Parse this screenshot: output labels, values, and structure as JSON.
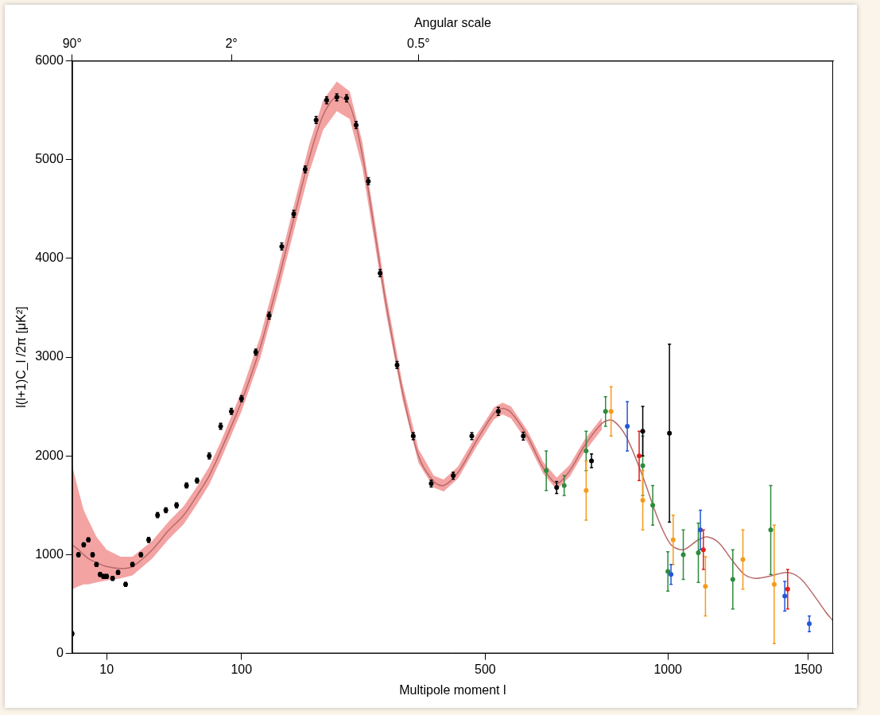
{
  "chart_data": {
    "type": "scatter",
    "x_label": "Multipole moment l",
    "x2_label": "Angular scale",
    "y_label": "l(l+1)C_l /2π [μK²]",
    "xlim": [
      2,
      1600
    ],
    "ylim": [
      0,
      6000
    ],
    "xticks": [
      10,
      100,
      500,
      1000,
      1500
    ],
    "x2ticks": [
      {
        "value": 2,
        "label": "90°"
      },
      {
        "value": 90,
        "label": "2°"
      },
      {
        "value": 360,
        "label": "0.5°"
      }
    ],
    "yticks": [
      0,
      1000,
      2000,
      3000,
      4000,
      5000,
      6000
    ],
    "grid": false,
    "series": [
      {
        "type": "band",
        "color": "#f4a3a3",
        "x": [
          2,
          3,
          4,
          5,
          7,
          10,
          15,
          20,
          30,
          40,
          50,
          60,
          70,
          80,
          100,
          120,
          140,
          160,
          180,
          200,
          220,
          240,
          260,
          280,
          300,
          330,
          360,
          390,
          410,
          440,
          480,
          520,
          540,
          560,
          600,
          640,
          675,
          710,
          750,
          800
        ],
        "lower": [
          650,
          680,
          700,
          700,
          720,
          740,
          760,
          790,
          960,
          1160,
          1310,
          1510,
          1710,
          1960,
          2450,
          2990,
          3630,
          4270,
          4860,
          5300,
          5490,
          5410,
          4920,
          4180,
          3450,
          2570,
          1930,
          1680,
          1640,
          1770,
          2090,
          2370,
          2420,
          2380,
          2140,
          1820,
          1660,
          1790,
          2040,
          2270
        ],
        "upper": [
          1900,
          1650,
          1450,
          1350,
          1180,
          1050,
          980,
          980,
          1140,
          1340,
          1490,
          1690,
          1890,
          2140,
          2650,
          3210,
          3870,
          4530,
          5140,
          5600,
          5790,
          5690,
          5180,
          4420,
          3650,
          2730,
          2070,
          1800,
          1760,
          1890,
          2210,
          2490,
          2540,
          2500,
          2260,
          1940,
          1780,
          1910,
          2160,
          2390
        ]
      },
      {
        "type": "line",
        "color": "#b86a6a",
        "line_style": "solid",
        "x": [
          2,
          3,
          4,
          5,
          7,
          10,
          15,
          20,
          30,
          40,
          50,
          60,
          70,
          80,
          100,
          120,
          140,
          160,
          180,
          200,
          220,
          240,
          260,
          280,
          300,
          330,
          360,
          390,
          410,
          440,
          480,
          520,
          540,
          560,
          600,
          640,
          675,
          710,
          750,
          800,
          830,
          870,
          920,
          970,
          1010,
          1050,
          1100,
          1130,
          1170,
          1220,
          1260,
          1300,
          1350,
          1420,
          1470,
          1520,
          1570,
          1600
        ],
        "values": [
          1100,
          1050,
          1000,
          960,
          920,
          880,
          860,
          880,
          1050,
          1250,
          1400,
          1600,
          1800,
          2050,
          2550,
          3100,
          3750,
          4400,
          5000,
          5450,
          5640,
          5550,
          5050,
          4300,
          3550,
          2650,
          2000,
          1740,
          1700,
          1830,
          2150,
          2430,
          2480,
          2440,
          2200,
          1880,
          1720,
          1850,
          2100,
          2330,
          2360,
          2200,
          1800,
          1350,
          1100,
          1050,
          1150,
          1180,
          1120,
          930,
          800,
          760,
          780,
          820,
          760,
          600,
          420,
          330
        ]
      },
      {
        "type": "scatter",
        "color": "#000000",
        "marker": "circle",
        "x": [
          2,
          3,
          4,
          5,
          6,
          7,
          8,
          9,
          10,
          12,
          14,
          17,
          20,
          24,
          28,
          33,
          38,
          45,
          52,
          60,
          70,
          80,
          90,
          100,
          115,
          130,
          145,
          160,
          175,
          190,
          205,
          220,
          235,
          250,
          270,
          290,
          320,
          350,
          385,
          430,
          470,
          530,
          590,
          675,
          770
        ],
        "values": [
          200,
          1000,
          1100,
          1150,
          1000,
          900,
          800,
          780,
          780,
          760,
          820,
          700,
          900,
          1000,
          1150,
          1400,
          1450,
          1500,
          1700,
          1750,
          2000,
          2300,
          2450,
          2580,
          3050,
          3420,
          4120,
          4450,
          4900,
          5400,
          5600,
          5630,
          5620,
          5350,
          4780,
          3850,
          2920,
          2200,
          1720,
          1800,
          2200,
          2450,
          2200,
          1680,
          1950
        ],
        "errors": [
          20,
          20,
          20,
          20,
          20,
          20,
          20,
          20,
          20,
          20,
          20,
          20,
          20,
          20,
          25,
          25,
          25,
          25,
          25,
          25,
          30,
          30,
          30,
          30,
          30,
          35,
          35,
          35,
          35,
          35,
          35,
          35,
          35,
          35,
          35,
          35,
          35,
          35,
          35,
          35,
          35,
          40,
          40,
          60,
          70
        ]
      },
      {
        "type": "scatter",
        "color": "#2e8b3c",
        "marker": "circle",
        "x": [
          648,
          695,
          755,
          810,
          921,
          952,
          1000,
          1050,
          1100,
          1219,
          1357
        ],
        "values": [
          1850,
          1700,
          2050,
          2450,
          1900,
          1500,
          830,
          1000,
          1020,
          750,
          1250
        ],
        "errors": [
          200,
          100,
          200,
          150,
          300,
          200,
          200,
          250,
          300,
          300,
          450
        ]
      },
      {
        "type": "scatter",
        "color": "#f59b1c",
        "marker": "circle",
        "x": [
          755,
          826,
          921,
          1017,
          1124,
          1255,
          1370
        ],
        "values": [
          1650,
          2450,
          1550,
          1150,
          680,
          950,
          700
        ],
        "errors": [
          300,
          250,
          300,
          250,
          300,
          300,
          600
        ]
      },
      {
        "type": "scatter",
        "color": "#2257d8",
        "marker": "circle",
        "x": [
          874,
          1010,
          1107,
          1410,
          1505
        ],
        "values": [
          2300,
          800,
          1250,
          580,
          300
        ],
        "errors": [
          250,
          100,
          200,
          150,
          80
        ]
      },
      {
        "type": "scatter",
        "color": "#e0201b",
        "marker": "circle",
        "x": [
          910,
          1117,
          1421
        ],
        "values": [
          2000,
          1050,
          650
        ],
        "errors": [
          250,
          200,
          200
        ]
      },
      {
        "type": "scatter",
        "color": "#000000",
        "marker": "circle",
        "x": [
          921,
          1005
        ],
        "values": [
          2250,
          2230
        ],
        "errors": [
          250,
          900
        ]
      }
    ]
  }
}
